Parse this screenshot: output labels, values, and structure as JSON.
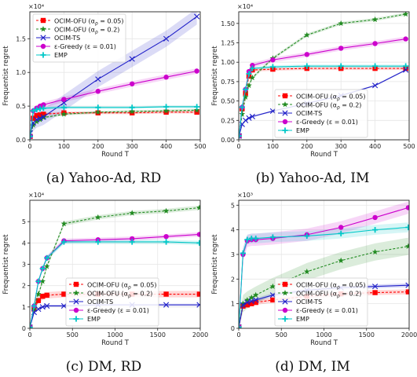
{
  "chart_data": [
    {
      "type": "line",
      "caption": "(a) Yahoo-Ad, RD",
      "multiplier": "×10⁴",
      "xlabel": "Round T",
      "ylabel": "Frequentist regret",
      "xlim": [
        0,
        500
      ],
      "ylim": [
        0,
        1.9
      ],
      "xticks": [
        0,
        100,
        200,
        300,
        400,
        500
      ],
      "xtick_labels": [
        "0",
        "100",
        "200",
        "300",
        "400",
        "500"
      ],
      "yticks": [
        0,
        0.5,
        1.0,
        1.5
      ],
      "ytick_labels": [
        "0.0",
        "0.5",
        "1.0",
        "1.5"
      ],
      "legend_position": "top-left",
      "series": [
        {
          "name": "OCIM-OFU (αρ = 0.05)",
          "color": "#ff0000",
          "marker": "square",
          "dash": "dashed",
          "band": 0.02,
          "x": [
            1,
            10,
            20,
            30,
            40,
            100,
            200,
            300,
            400,
            490
          ],
          "y": [
            0.05,
            0.32,
            0.36,
            0.37,
            0.38,
            0.4,
            0.4,
            0.4,
            0.41,
            0.41
          ]
        },
        {
          "name": "OCIM-OFU (αρ = 0.2)",
          "color": "#228B22",
          "marker": "star",
          "dash": "dashed",
          "band": 0.02,
          "x": [
            1,
            10,
            20,
            30,
            40,
            100,
            200,
            300,
            400,
            490
          ],
          "y": [
            0.05,
            0.22,
            0.27,
            0.3,
            0.33,
            0.38,
            0.41,
            0.42,
            0.43,
            0.44
          ]
        },
        {
          "name": "OCIM-TS",
          "color": "#1f1fc8",
          "marker": "x",
          "dash": "solid",
          "band": 0.12,
          "x": [
            1,
            10,
            20,
            30,
            40,
            100,
            200,
            300,
            400,
            490
          ],
          "y": [
            0.1,
            0.25,
            0.3,
            0.32,
            0.34,
            0.55,
            0.9,
            1.2,
            1.5,
            1.83
          ]
        },
        {
          "name": "ε-Greedy (ε = 0.01)",
          "color": "#cc00cc",
          "marker": "circle",
          "dash": "solid",
          "band": 0.04,
          "x": [
            1,
            10,
            20,
            30,
            40,
            100,
            200,
            300,
            400,
            490
          ],
          "y": [
            0.05,
            0.43,
            0.47,
            0.5,
            0.52,
            0.6,
            0.72,
            0.83,
            0.93,
            1.02
          ]
        },
        {
          "name": "EMP",
          "color": "#00c8c8",
          "marker": "plus",
          "dash": "solid",
          "band": 0.02,
          "x": [
            1,
            10,
            20,
            30,
            40,
            100,
            200,
            300,
            400,
            490
          ],
          "y": [
            0.05,
            0.43,
            0.45,
            0.46,
            0.47,
            0.48,
            0.48,
            0.48,
            0.49,
            0.49
          ]
        }
      ]
    },
    {
      "type": "line",
      "caption": "(b) Yahoo-Ad, IM",
      "multiplier": "×10⁴",
      "xlabel": "Round T",
      "ylabel": "Frequentist regret",
      "xlim": [
        0,
        500
      ],
      "ylim": [
        0,
        1.65
      ],
      "xticks": [
        0,
        100,
        200,
        300,
        400,
        500
      ],
      "xtick_labels": [
        "0",
        "100",
        "200",
        "300",
        "400",
        "500"
      ],
      "yticks": [
        0,
        0.25,
        0.5,
        0.75,
        1.0,
        1.25,
        1.5
      ],
      "ytick_labels": [
        "0.00",
        "0.25",
        "0.50",
        "0.75",
        "1.00",
        "1.25",
        "1.50"
      ],
      "legend_position": "bottom-center",
      "series": [
        {
          "name": "OCIM-OFU (αρ = 0.05)",
          "color": "#ff0000",
          "marker": "square",
          "dash": "dashed",
          "band": 0.02,
          "x": [
            1,
            10,
            20,
            30,
            40,
            100,
            200,
            300,
            400,
            490
          ],
          "y": [
            0.05,
            0.4,
            0.6,
            0.82,
            0.9,
            0.91,
            0.92,
            0.92,
            0.92,
            0.92
          ]
        },
        {
          "name": "OCIM-OFU (αρ = 0.2)",
          "color": "#228B22",
          "marker": "star",
          "dash": "dashed",
          "band": 0.02,
          "x": [
            1,
            10,
            20,
            30,
            40,
            100,
            200,
            300,
            400,
            490
          ],
          "y": [
            0.05,
            0.33,
            0.55,
            0.7,
            0.8,
            1.05,
            1.35,
            1.5,
            1.55,
            1.62
          ]
        },
        {
          "name": "OCIM-TS",
          "color": "#1f1fc8",
          "marker": "x",
          "dash": "solid",
          "band": 0.01,
          "x": [
            1,
            10,
            20,
            30,
            40,
            100,
            200,
            300,
            400,
            490
          ],
          "y": [
            0.05,
            0.2,
            0.25,
            0.28,
            0.3,
            0.37,
            0.47,
            0.57,
            0.7,
            0.9
          ]
        },
        {
          "name": "ε-Greedy (ε = 0.01)",
          "color": "#cc00cc",
          "marker": "circle",
          "dash": "solid",
          "band": 0.03,
          "x": [
            1,
            10,
            20,
            30,
            40,
            100,
            200,
            300,
            400,
            490
          ],
          "y": [
            0.05,
            0.42,
            0.65,
            0.88,
            0.96,
            1.03,
            1.1,
            1.18,
            1.24,
            1.3
          ]
        },
        {
          "name": "EMP",
          "color": "#00c8c8",
          "marker": "plus",
          "dash": "solid",
          "band": 0.02,
          "x": [
            1,
            10,
            20,
            30,
            40,
            100,
            200,
            300,
            400,
            490
          ],
          "y": [
            0.05,
            0.42,
            0.65,
            0.85,
            0.92,
            0.94,
            0.95,
            0.95,
            0.95,
            0.95
          ]
        }
      ]
    },
    {
      "type": "line",
      "caption": "(c) DM, RD",
      "multiplier": "×10⁴",
      "xlabel": "Round T",
      "ylabel": "Frequentist regret",
      "xlim": [
        0,
        2000
      ],
      "ylim": [
        0,
        6.0
      ],
      "xticks": [
        0,
        500,
        1000,
        1500,
        2000
      ],
      "xtick_labels": [
        "0",
        "500",
        "1000",
        "1500",
        "2000"
      ],
      "yticks": [
        0,
        1,
        2,
        3,
        4,
        5
      ],
      "ytick_labels": [
        "0",
        "1",
        "2",
        "3",
        "4",
        "5"
      ],
      "legend_position": "bottom-center",
      "series": [
        {
          "name": "OCIM-OFU (αρ = 0.05)",
          "color": "#ff0000",
          "marker": "square",
          "dash": "dashed",
          "band": 0.15,
          "x": [
            1,
            50,
            100,
            150,
            200,
            400,
            800,
            1200,
            1600,
            1990
          ],
          "y": [
            0.05,
            0.9,
            1.3,
            1.5,
            1.55,
            1.6,
            1.6,
            1.6,
            1.6,
            1.6
          ]
        },
        {
          "name": "OCIM-OFU (αρ = 0.2)",
          "color": "#228B22",
          "marker": "star",
          "dash": "dashed",
          "band": 0.1,
          "x": [
            1,
            50,
            100,
            150,
            200,
            400,
            800,
            1200,
            1600,
            1990
          ],
          "y": [
            0.05,
            0.9,
            1.6,
            2.2,
            2.9,
            4.9,
            5.2,
            5.4,
            5.5,
            5.65
          ]
        },
        {
          "name": "OCIM-TS",
          "color": "#1f1fc8",
          "marker": "x",
          "dash": "solid",
          "band": 0.05,
          "x": [
            1,
            50,
            100,
            150,
            200,
            400,
            800,
            1200,
            1600,
            1990
          ],
          "y": [
            0.05,
            0.75,
            0.9,
            1.0,
            1.05,
            1.05,
            1.1,
            1.1,
            1.1,
            1.1
          ]
        },
        {
          "name": "ε-Greedy (ε = 0.01)",
          "color": "#cc00cc",
          "marker": "circle",
          "dash": "solid",
          "band": 0.1,
          "x": [
            1,
            50,
            100,
            150,
            200,
            400,
            800,
            1200,
            1600,
            1990
          ],
          "y": [
            0.05,
            1.05,
            2.2,
            2.8,
            3.3,
            4.1,
            4.15,
            4.2,
            4.3,
            4.4
          ]
        },
        {
          "name": "EMP",
          "color": "#00c8c8",
          "marker": "plus",
          "dash": "solid",
          "band": 0.1,
          "x": [
            1,
            50,
            100,
            150,
            200,
            400,
            800,
            1200,
            1600,
            1990
          ],
          "y": [
            0.05,
            1.05,
            2.2,
            2.8,
            3.3,
            4.05,
            4.05,
            4.05,
            4.05,
            4.0
          ]
        }
      ]
    },
    {
      "type": "line",
      "caption": "(d) DM, IM",
      "multiplier": "×10³",
      "xlabel": "Round T",
      "ylabel": "Frequentist regret",
      "xlim": [
        0,
        2000
      ],
      "ylim": [
        0,
        5.2
      ],
      "xticks": [
        0,
        500,
        1000,
        1500,
        2000
      ],
      "xtick_labels": [
        "0",
        "500",
        "1000",
        "1500",
        "2000"
      ],
      "yticks": [
        0,
        1,
        2,
        3,
        4,
        5
      ],
      "ytick_labels": [
        "0",
        "1",
        "2",
        "3",
        "4",
        "5"
      ],
      "legend_position": "bottom-center",
      "series": [
        {
          "name": "OCIM-OFU (αρ = 0.05)",
          "color": "#ff0000",
          "marker": "square",
          "dash": "dashed",
          "band": 0.1,
          "x": [
            1,
            50,
            100,
            150,
            200,
            400,
            800,
            1200,
            1600,
            1990
          ],
          "y": [
            0.05,
            0.9,
            0.95,
            1.0,
            1.05,
            1.15,
            1.3,
            1.4,
            1.45,
            1.48
          ]
        },
        {
          "name": "OCIM-OFU (αρ = 0.2)",
          "color": "#228B22",
          "marker": "star",
          "dash": "dashed",
          "band": 0.35,
          "x": [
            1,
            50,
            100,
            150,
            200,
            400,
            800,
            1200,
            1600,
            1990
          ],
          "y": [
            0.05,
            1.0,
            1.15,
            1.25,
            1.35,
            1.7,
            2.3,
            2.75,
            3.1,
            3.33
          ]
        },
        {
          "name": "OCIM-TS",
          "color": "#1f1fc8",
          "marker": "x",
          "dash": "solid",
          "band": 0.08,
          "x": [
            1,
            50,
            100,
            150,
            200,
            400,
            800,
            1200,
            1600,
            1990
          ],
          "y": [
            0.05,
            0.95,
            1.05,
            1.1,
            1.15,
            1.35,
            1.55,
            1.65,
            1.7,
            1.75
          ]
        },
        {
          "name": "ε-Greedy (ε = 0.01)",
          "color": "#cc00cc",
          "marker": "circle",
          "dash": "solid",
          "band": 0.25,
          "x": [
            1,
            50,
            100,
            150,
            200,
            400,
            800,
            1200,
            1600,
            1990
          ],
          "y": [
            0.05,
            3.0,
            3.55,
            3.6,
            3.6,
            3.65,
            3.8,
            4.1,
            4.5,
            4.9
          ]
        },
        {
          "name": "EMP",
          "color": "#00c8c8",
          "marker": "plus",
          "dash": "solid",
          "band": 0.2,
          "x": [
            1,
            50,
            100,
            150,
            200,
            400,
            800,
            1200,
            1600,
            1990
          ],
          "y": [
            0.05,
            3.05,
            3.6,
            3.65,
            3.65,
            3.7,
            3.75,
            3.85,
            4.0,
            4.1
          ]
        }
      ]
    }
  ]
}
